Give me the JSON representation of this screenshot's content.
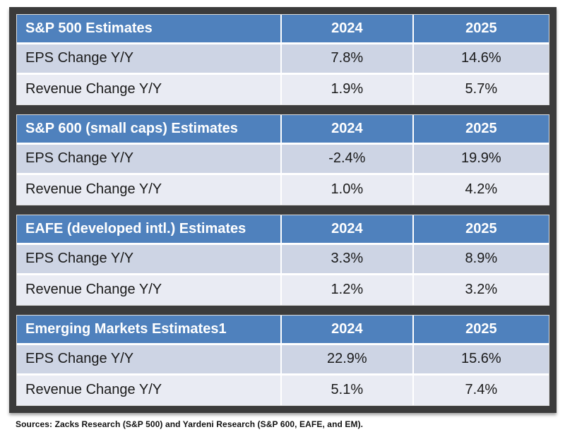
{
  "colors": {
    "header_blue": "#4F81BD",
    "row_primary": "#CDD4E4",
    "row_secondary": "#E9EBF3",
    "frame_dark": "#3B3B3B"
  },
  "footer": {
    "sources": "Sources: Zacks Research (S&P 500) and Yardeni Research (S&P 600, EAFE, and EM)."
  },
  "chart_data": [
    {
      "type": "table",
      "title": "S&P 500 Estimates",
      "columns": [
        "S&P 500 Estimates",
        "2024",
        "2025"
      ],
      "rows": [
        {
          "label": "EPS Change Y/Y",
          "y2024": "7.8%",
          "y2025": "14.6%"
        },
        {
          "label": "Revenue Change Y/Y",
          "y2024": "1.9%",
          "y2025": "5.7%"
        }
      ]
    },
    {
      "type": "table",
      "title": "S&P 600 (small caps) Estimates",
      "columns": [
        "S&P 600 (small caps) Estimates",
        "2024",
        "2025"
      ],
      "rows": [
        {
          "label": "EPS Change Y/Y",
          "y2024": "-2.4%",
          "y2025": "19.9%"
        },
        {
          "label": "Revenue Change Y/Y",
          "y2024": "1.0%",
          "y2025": "4.2%"
        }
      ]
    },
    {
      "type": "table",
      "title": "EAFE (developed intl.) Estimates",
      "columns": [
        "EAFE (developed intl.) Estimates",
        "2024",
        "2025"
      ],
      "rows": [
        {
          "label": "EPS Change Y/Y",
          "y2024": "3.3%",
          "y2025": "8.9%"
        },
        {
          "label": "Revenue Change Y/Y",
          "y2024": "1.2%",
          "y2025": "3.2%"
        }
      ]
    },
    {
      "type": "table",
      "title": "Emerging Markets Estimates1",
      "columns": [
        "Emerging Markets Estimates1",
        "2024",
        "2025"
      ],
      "rows": [
        {
          "label": "EPS Change Y/Y",
          "y2024": "22.9%",
          "y2025": "15.6%"
        },
        {
          "label": "Revenue Change Y/Y",
          "y2024": "5.1%",
          "y2025": "7.4%"
        }
      ]
    }
  ]
}
